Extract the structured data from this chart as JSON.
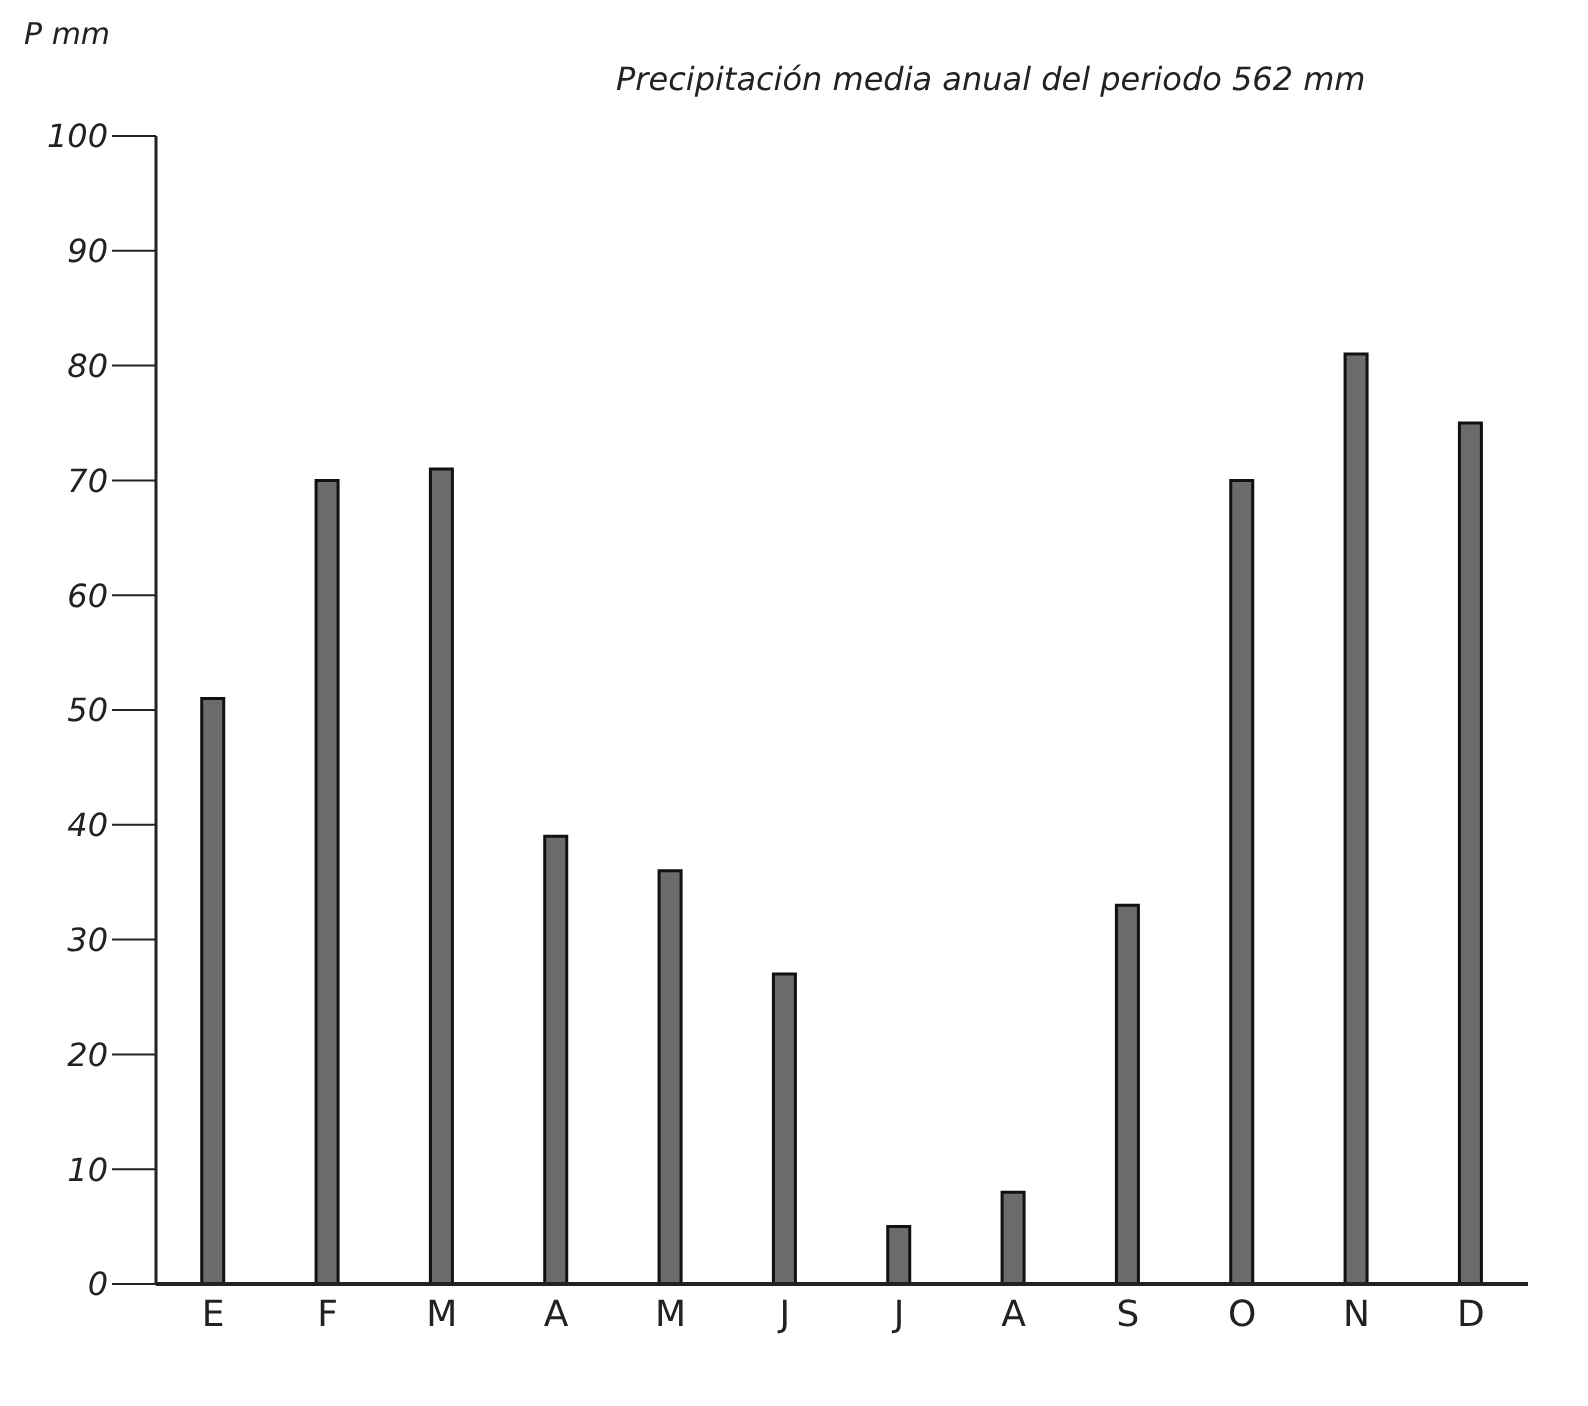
{
  "chart_data": {
    "type": "bar",
    "title": "Precipitación media anual del periodo  562 mm",
    "ylabel": "P mm",
    "categories": [
      "E",
      "F",
      "M",
      "A",
      "M",
      "J",
      "J",
      "A",
      "S",
      "O",
      "N",
      "D"
    ],
    "values": [
      51,
      70,
      71,
      39,
      36,
      27,
      5,
      8,
      33,
      70,
      81,
      75
    ],
    "color": "#6b6b6b",
    "ylim": [
      0,
      100
    ],
    "yticks": [
      0,
      10,
      20,
      30,
      40,
      50,
      60,
      70,
      80,
      90,
      100
    ],
    "grid": false,
    "legend": false
  }
}
